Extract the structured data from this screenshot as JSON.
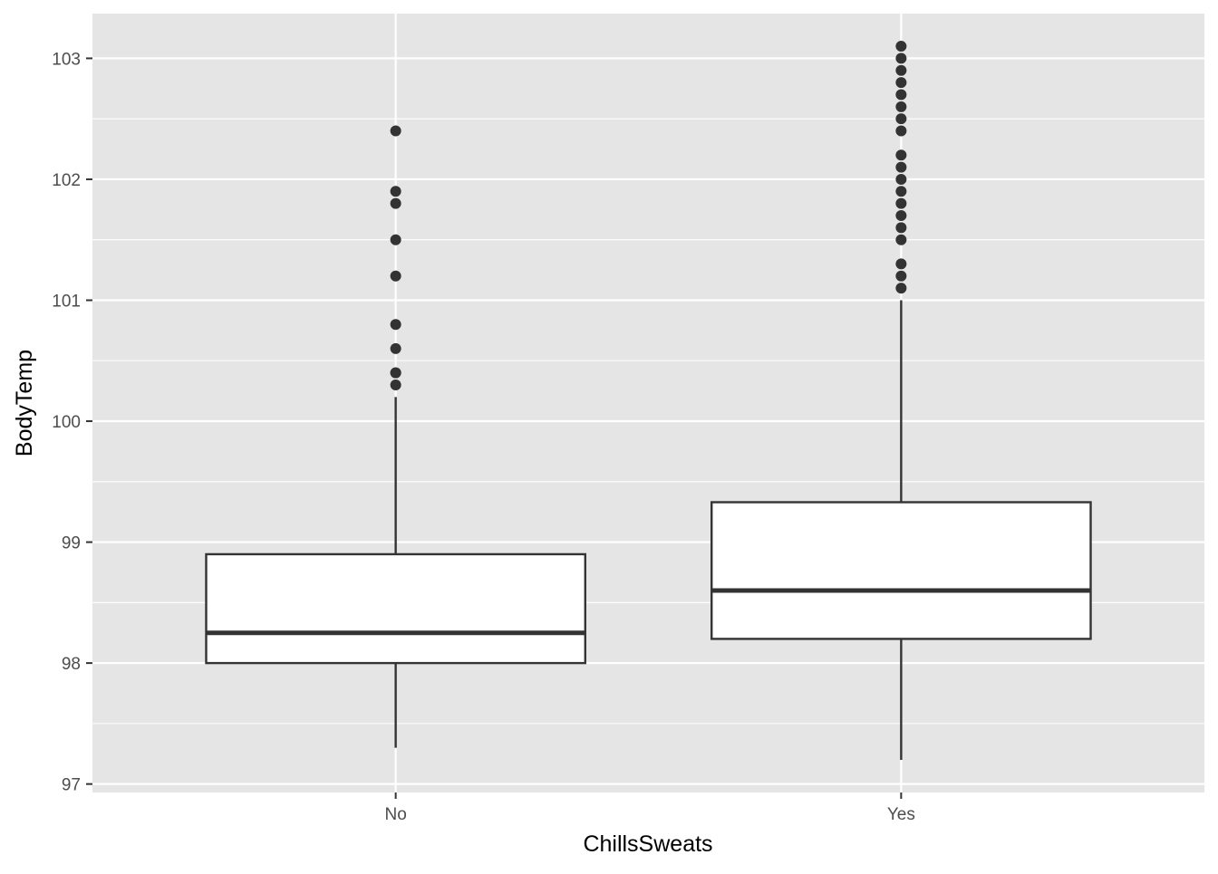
{
  "chart_data": {
    "type": "boxplot",
    "title": "",
    "xlabel": "ChillsSweats",
    "ylabel": "BodyTemp",
    "ylim": [
      96.93,
      103.37
    ],
    "yticks": [
      97,
      98,
      99,
      100,
      101,
      102,
      103
    ],
    "grid": true,
    "legend": "none",
    "colors": {
      "panel": "#e5e5e5",
      "grid": "#ffffff",
      "box_fill": "#ffffff",
      "stroke": "#333333",
      "outlier": "#333333"
    },
    "categories": [
      "No",
      "Yes"
    ],
    "boxes": [
      {
        "category": "No",
        "whisker_low": 97.3,
        "q1": 98.0,
        "median": 98.25,
        "q3": 98.9,
        "whisker_high": 100.2,
        "outliers": [
          100.3,
          100.4,
          100.4,
          100.6,
          100.8,
          101.2,
          101.5,
          101.8,
          101.9,
          102.4
        ]
      },
      {
        "category": "Yes",
        "whisker_low": 97.2,
        "q1": 98.2,
        "median": 98.6,
        "q3": 99.33,
        "whisker_high": 101.0,
        "outliers": [
          101.1,
          101.2,
          101.3,
          101.5,
          101.6,
          101.7,
          101.8,
          101.9,
          102.0,
          102.1,
          102.2,
          102.4,
          102.5,
          102.6,
          102.7,
          102.8,
          102.9,
          103.0,
          103.1
        ]
      }
    ]
  }
}
